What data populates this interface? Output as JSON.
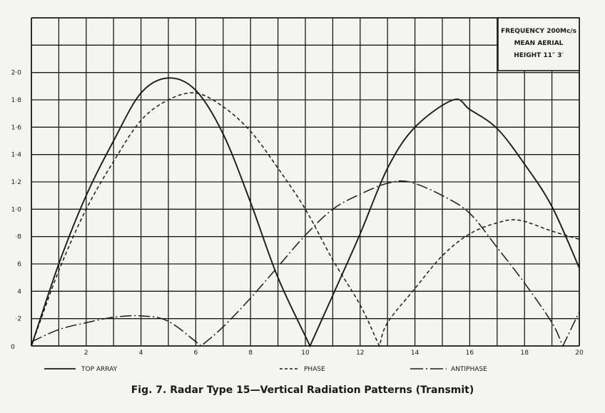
{
  "chart_data": {
    "type": "line",
    "title": "Fig. 7.   Radar Type 15—Vertical Radiation Patterns (Transmit)",
    "xlabel": "",
    "ylabel": "",
    "xlim": [
      0,
      20
    ],
    "ylim": [
      0,
      2.4
    ],
    "grid": true,
    "x_ticks": [
      0,
      2,
      4,
      6,
      8,
      10,
      12,
      14,
      16,
      18,
      20
    ],
    "x_tick_labels": [
      "0",
      "2",
      "4",
      "6",
      "8",
      "10",
      "12",
      "14",
      "16",
      "18",
      "20"
    ],
    "y_ticks": [
      0,
      0.2,
      0.4,
      0.6,
      0.8,
      1.0,
      1.2,
      1.4,
      1.6,
      1.8,
      2.0
    ],
    "y_tick_labels": [
      "0",
      "·2",
      "4",
      "6",
      "·8",
      "1·0",
      "1·2",
      "1·4",
      "1·6",
      "1·8",
      "2·0"
    ],
    "legend_placement": "bottom",
    "annotation": [
      "FREQUENCY 200Mc/s",
      "MEAN AERIAL",
      "HEIGHT 11″ 3′"
    ],
    "series": [
      {
        "name": "TOP ARRAY",
        "style": "solid",
        "color": "#1a1a1a",
        "x": [
          0,
          1,
          2,
          3,
          4,
          5,
          6,
          7,
          8,
          9,
          10.17,
          11,
          12,
          13,
          14,
          15.4,
          16,
          17,
          18,
          19,
          20
        ],
        "y": [
          0,
          0.6,
          1.1,
          1.5,
          1.85,
          1.96,
          1.87,
          1.55,
          1.05,
          0.5,
          0,
          0.37,
          0.82,
          1.3,
          1.6,
          1.8,
          1.73,
          1.59,
          1.33,
          1.02,
          0.57
        ]
      },
      {
        "name": "PHASE",
        "style": "dashed",
        "color": "#1a1a1a",
        "x": [
          0,
          1,
          2,
          3,
          4,
          5,
          6,
          7,
          8,
          9,
          10,
          11,
          12,
          12.7,
          13,
          14,
          15,
          16,
          17,
          17.8,
          19,
          20
        ],
        "y": [
          0,
          0.55,
          1.0,
          1.35,
          1.65,
          1.8,
          1.85,
          1.75,
          1.57,
          1.3,
          1.0,
          0.63,
          0.3,
          0,
          0.17,
          0.42,
          0.66,
          0.82,
          0.9,
          0.92,
          0.84,
          0.78
        ]
      },
      {
        "name": "ANTIPHASE",
        "style": "dash-dot",
        "color": "#1a1a1a",
        "x": [
          0,
          1,
          2,
          3,
          4,
          5,
          6.2,
          7,
          8,
          9,
          10,
          11,
          12,
          13,
          13.8,
          15,
          16,
          17,
          18,
          19,
          19.4,
          20
        ],
        "y": [
          0.03,
          0.12,
          0.17,
          0.21,
          0.22,
          0.18,
          0,
          0.14,
          0.35,
          0.58,
          0.81,
          1.0,
          1.11,
          1.19,
          1.2,
          1.1,
          0.97,
          0.72,
          0.46,
          0.17,
          0,
          0.25
        ]
      }
    ]
  }
}
